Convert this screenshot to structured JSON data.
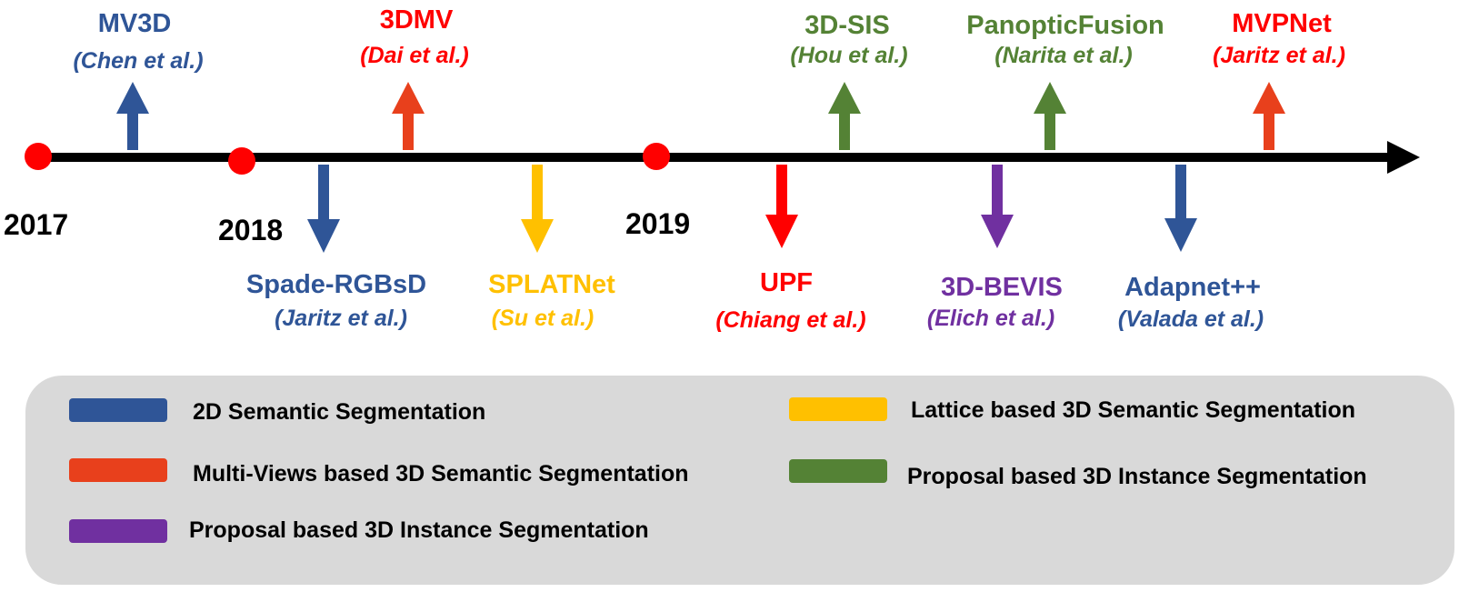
{
  "colors": {
    "blue": "#2f5597",
    "orange": "#e8401c",
    "red": "#ff0000",
    "green": "#548235",
    "yellow": "#ffc000",
    "purple": "#7030a0",
    "timeline": "#000000",
    "year_dot": "#ff0000"
  },
  "timeline": {
    "years": [
      "2017",
      "2018",
      "2019"
    ]
  },
  "events_above": [
    {
      "method": "MV3D",
      "author": "(Chen et al.)",
      "color": "#2f5597",
      "arrow_color": "#2f5597"
    },
    {
      "method": "3DMV",
      "author": "(Dai et al.)",
      "color": "#ff0000",
      "arrow_color": "#e8401c"
    },
    {
      "method": "3D-SIS",
      "author": "(Hou et al.)",
      "color": "#548235",
      "arrow_color": "#548235"
    },
    {
      "method": "PanopticFusion",
      "author": "(Narita et al.)",
      "color": "#548235",
      "arrow_color": "#548235"
    },
    {
      "method": "MVPNet",
      "author": "(Jaritz et al.)",
      "color": "#ff0000",
      "arrow_color": "#e8401c"
    }
  ],
  "events_below": [
    {
      "method": "Spade-RGBsD",
      "author": "(Jaritz et al.)",
      "color": "#2f5597",
      "arrow_color": "#2f5597"
    },
    {
      "method": "SPLATNet",
      "author": "(Su et al.)",
      "color": "#ffc000",
      "arrow_color": "#ffc000"
    },
    {
      "method": "UPF",
      "author": "(Chiang et al.)",
      "color": "#ff0000",
      "arrow_color": "#ff0000"
    },
    {
      "method": "3D-BEVIS",
      "author": "(Elich et al.)",
      "color": "#7030a0",
      "arrow_color": "#7030a0"
    },
    {
      "method": "Adapnet++",
      "author": "(Valada et al.)",
      "color": "#2f5597",
      "arrow_color": "#2f5597"
    }
  ],
  "legend": [
    {
      "label": "2D Semantic Segmentation",
      "color": "#2f5597"
    },
    {
      "label": "Multi-Views based 3D Semantic Segmentation",
      "color": "#e8401c"
    },
    {
      "label": "Proposal based 3D Instance Segmentation",
      "color": "#7030a0"
    },
    {
      "label": "Lattice based 3D Semantic Segmentation",
      "color": "#ffc000"
    },
    {
      "label": "Proposal based 3D Instance Segmentation",
      "color": "#548235"
    }
  ]
}
